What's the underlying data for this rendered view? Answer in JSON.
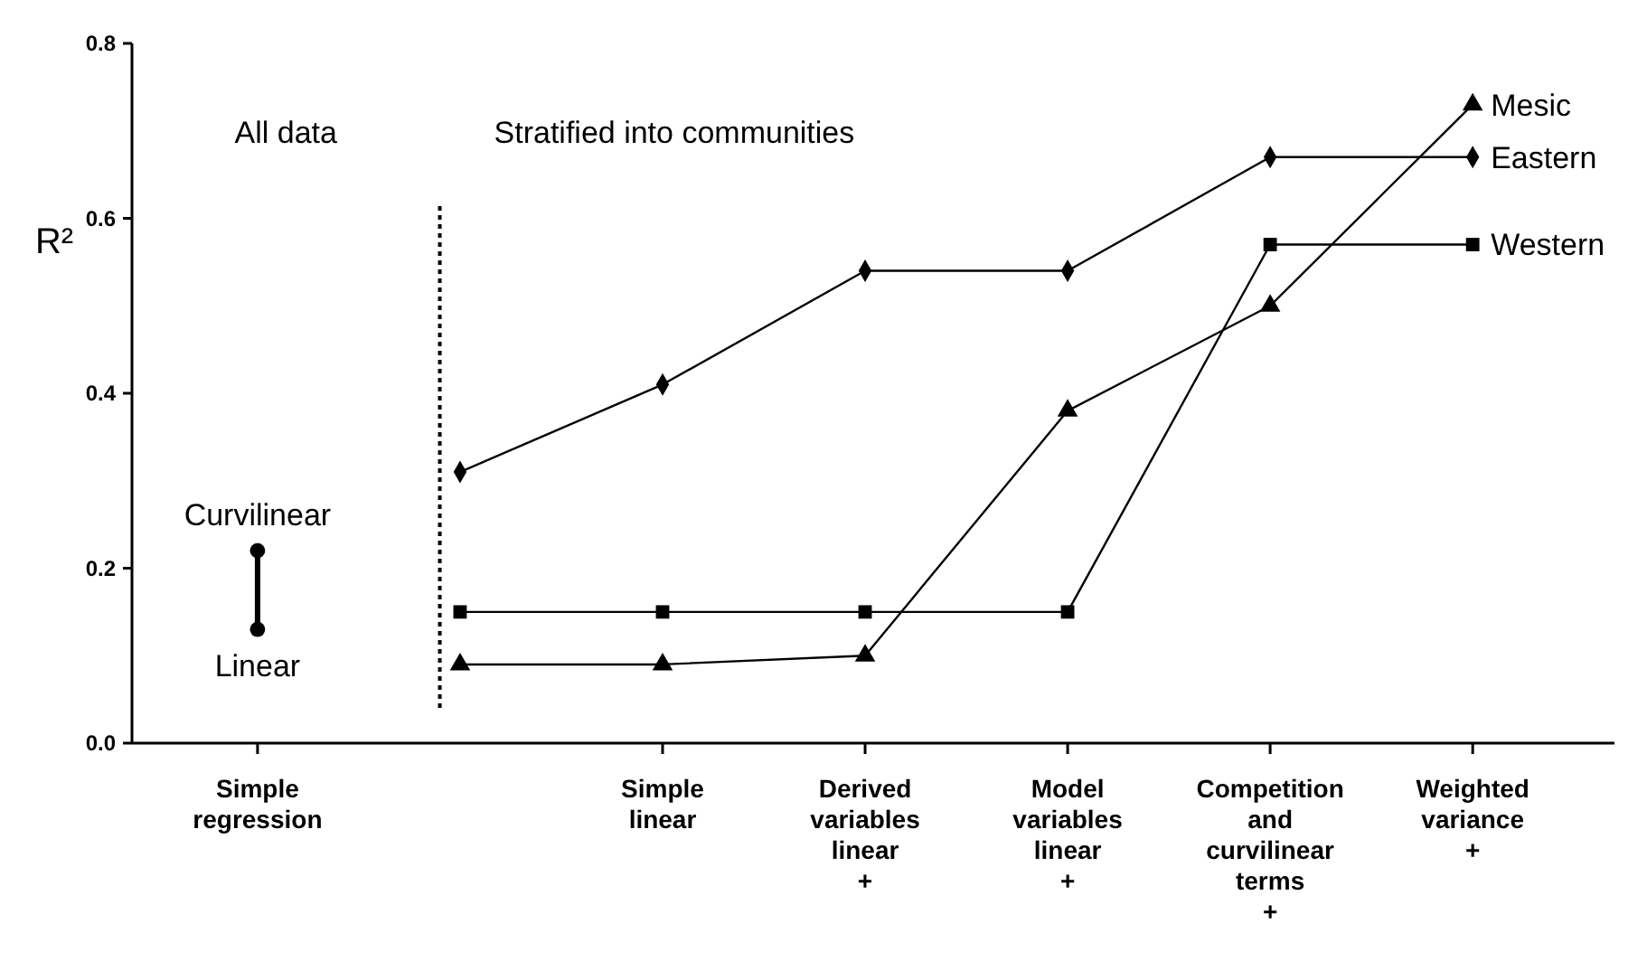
{
  "chart_data": {
    "type": "line",
    "ylabel": "R²",
    "categories": [
      "Simple\nregression",
      null,
      "Simple\nlinear",
      "Derived\nvariables\nlinear\n+",
      "Model\nvariables\nlinear\n+",
      "Competition\nand\ncurvilinear\nterms\n+",
      "Weighted\nvariance\n+"
    ],
    "ylim": [
      0,
      0.8
    ],
    "yticks": [
      {
        "value": 0,
        "label": "0.0"
      },
      0.2,
      0.4,
      0.6,
      0.8
    ],
    "grid": false,
    "legend": false,
    "line_style": "solid",
    "series": [
      {
        "name": "Curvilinear",
        "type": "scatter",
        "color": "#000000",
        "marker": "circle",
        "values": [
          0.22,
          null,
          null,
          null,
          null,
          null,
          null
        ]
      },
      {
        "type": "bar",
        "color": "#000000",
        "values": [
          0.09,
          null,
          null,
          null,
          null,
          null,
          null
        ],
        "base": [
          0.13,
          null,
          null,
          null,
          null,
          null,
          null
        ]
      },
      {
        "name": "Linear",
        "type": "scatter",
        "color": "#000000",
        "marker": "circle",
        "values": [
          0.13,
          null,
          null,
          null,
          null,
          null,
          null
        ]
      },
      {
        "name": "Eastern",
        "color": "#000000",
        "marker": "diamond",
        "values": [
          null,
          0.31,
          0.41,
          0.54,
          0.54,
          0.67,
          0.67
        ]
      },
      {
        "name": "Western",
        "color": "#000000",
        "marker": "square",
        "values": [
          null,
          0.15,
          0.15,
          0.15,
          0.15,
          0.57,
          0.57
        ]
      },
      {
        "name": "Mesic",
        "color": "#000000",
        "marker": "triangle",
        "values": [
          null,
          0.09,
          0.09,
          0.1,
          0.38,
          0.5,
          0.73
        ]
      }
    ],
    "annotations": [
      "All data",
      "Stratified into communities"
    ]
  }
}
